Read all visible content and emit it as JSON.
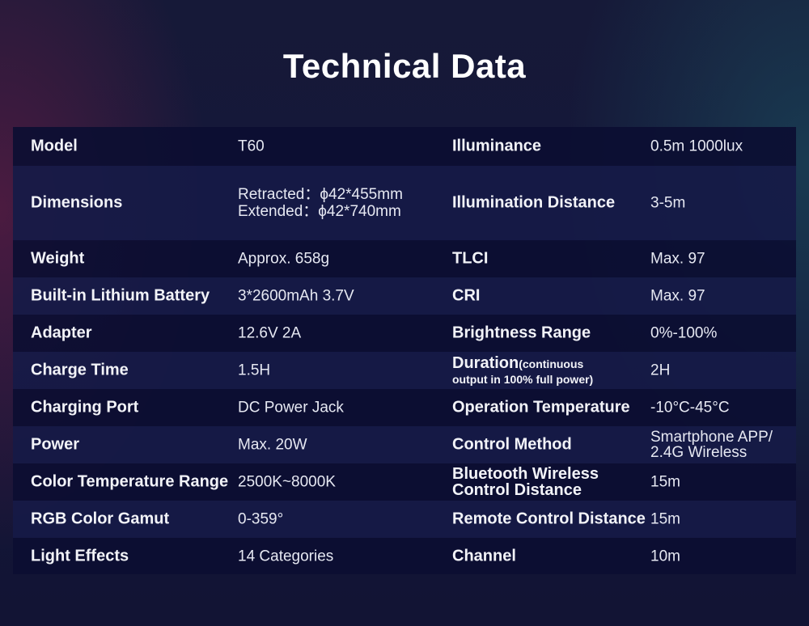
{
  "title": "Technical Data",
  "rows": [
    {
      "label": "Model",
      "value": "T60",
      "label2": "Illuminance",
      "value2": "0.5m 1000lux"
    },
    {
      "label": "Dimensions",
      "value": "Retracted：ϕ42*455mm",
      "value_line2": "Extended：ϕ42*740mm",
      "label2": "Illumination Distance",
      "value2": "3-5m"
    },
    {
      "label": "Weight",
      "value": "Approx. 658g",
      "label2": "TLCI",
      "value2": "Max. 97"
    },
    {
      "label": "Built-in Lithium Battery",
      "value": "3*2600mAh 3.7V",
      "label2": "CRI",
      "value2": "Max. 97"
    },
    {
      "label": "Adapter",
      "value": "12.6V 2A",
      "label2": "Brightness Range",
      "value2": "0%-100%"
    },
    {
      "label": "Charge Time",
      "value": "1.5H",
      "label2": "Duration",
      "label2_note": "(continuous",
      "label2_note2": "output in 100% full power)",
      "value2": "2H"
    },
    {
      "label": "Charging Port",
      "value": "DC Power Jack",
      "label2": "Operation Temperature",
      "value2": "-10°C-45°C"
    },
    {
      "label": "Power",
      "value": "Max. 20W",
      "label2": "Control Method",
      "value2": "Smartphone APP/",
      "value2_line2": "2.4G Wireless"
    },
    {
      "label": "Color Temperature Range",
      "value": "2500K~8000K",
      "label2": "Bluetooth Wireless",
      "label2_line2": "Control Distance",
      "value2": "15m"
    },
    {
      "label": "RGB Color Gamut",
      "value": "0-359°",
      "label2": "Remote Control Distance",
      "value2": "15m"
    },
    {
      "label": "Light Effects",
      "value": "14 Categories",
      "label2": "Channel",
      "value2": "10m"
    }
  ]
}
